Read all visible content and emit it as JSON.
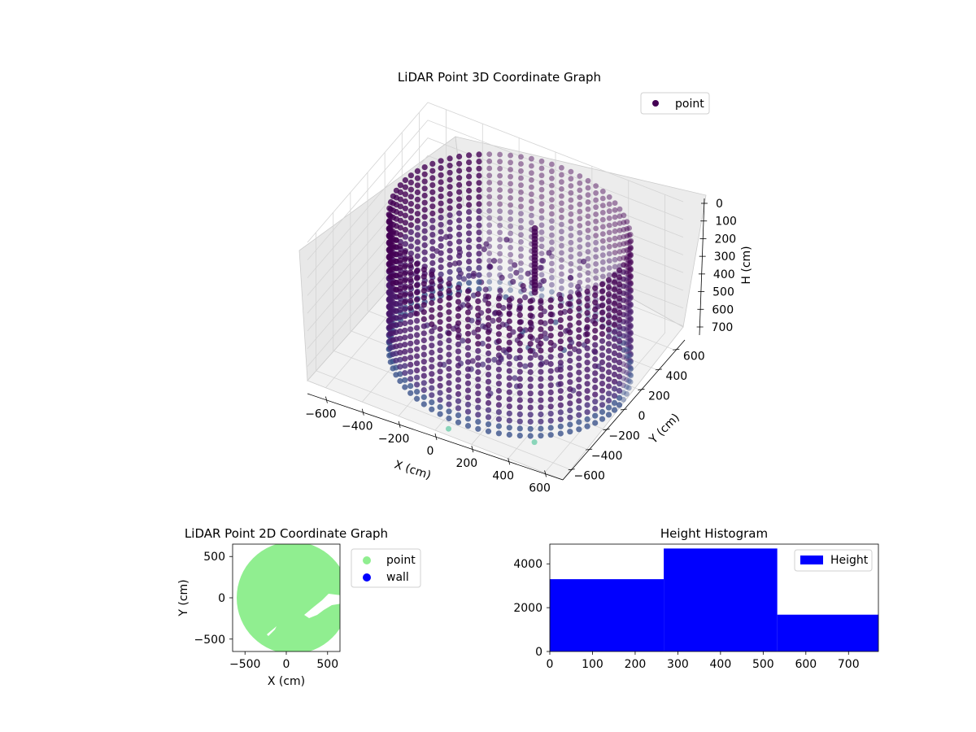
{
  "colors": {
    "point_dark": "#440154",
    "point_mid": "#3b528b",
    "point_light": "#5ec962",
    "scatter2d_point": "#90ee90",
    "scatter2d_wall": "#0000ff",
    "histogram_bar": "#0000ff"
  },
  "chart_data": [
    {
      "type": "scatter3d",
      "title": "LiDAR Point 3D Coordinate Graph",
      "xlabel": "X (cm)",
      "ylabel": "Y (cm)",
      "zlabel": "H (cm)",
      "xlim": [
        -700,
        700
      ],
      "ylim": [
        -700,
        700
      ],
      "zlim": [
        780,
        0
      ],
      "z_axis_inverted": true,
      "x_ticks": [
        "−600",
        "−400",
        "−200",
        "0",
        "200",
        "400",
        "600"
      ],
      "y_ticks": [
        "−600",
        "−400",
        "−200",
        "0",
        "200",
        "400",
        "600"
      ],
      "z_ticks": [
        "0",
        "100",
        "200",
        "300",
        "400",
        "500",
        "600",
        "700"
      ],
      "grid": true,
      "legend": {
        "position": "top-right",
        "entries": [
          "point"
        ]
      },
      "colormap": "viridis",
      "series": [
        {
          "name": "point",
          "shape": "cylinder of points with radius ≈ 600 cm spanning heights ≈ 0–780 cm, with a sparse interior cluster",
          "outliers": [
            {
              "x": 50,
              "y": -650,
              "h": 780
            },
            {
              "x": 450,
              "y": -500,
              "h": 780
            },
            {
              "x": -200,
              "y": 150,
              "h": 720
            },
            {
              "x": 300,
              "y": 250,
              "h": 700
            }
          ]
        }
      ]
    },
    {
      "type": "scatter",
      "title": "LiDAR Point 2D Coordinate Graph",
      "xlabel": "X (cm)",
      "ylabel": "Y (cm)",
      "xlim": [
        -650,
        650
      ],
      "ylim": [
        -650,
        650
      ],
      "x_ticks": [
        "−500",
        "0",
        "500"
      ],
      "y_ticks": [
        "500",
        "0",
        "−500"
      ],
      "legend": {
        "position": "outside-right",
        "entries": [
          "point",
          "wall"
        ]
      },
      "series": [
        {
          "name": "point",
          "shape": "filled disc of radius ≈ 600 cm centred near (80, 0)"
        },
        {
          "name": "wall",
          "shape": "none visible"
        }
      ]
    },
    {
      "type": "bar",
      "title": "Height Histogram",
      "xlabel": "",
      "ylabel": "",
      "xlim": [
        0,
        770
      ],
      "ylim": [
        0,
        4900
      ],
      "x_ticks": [
        "0",
        "100",
        "200",
        "300",
        "400",
        "500",
        "600",
        "700"
      ],
      "y_ticks": [
        "0",
        "2000",
        "4000"
      ],
      "legend": {
        "position": "top-right",
        "entries": [
          "Height"
        ]
      },
      "bins": [
        {
          "start": 0,
          "end": 267,
          "count": 3300
        },
        {
          "start": 267,
          "end": 533,
          "count": 4700
        },
        {
          "start": 533,
          "end": 770,
          "count": 1680
        }
      ]
    }
  ]
}
